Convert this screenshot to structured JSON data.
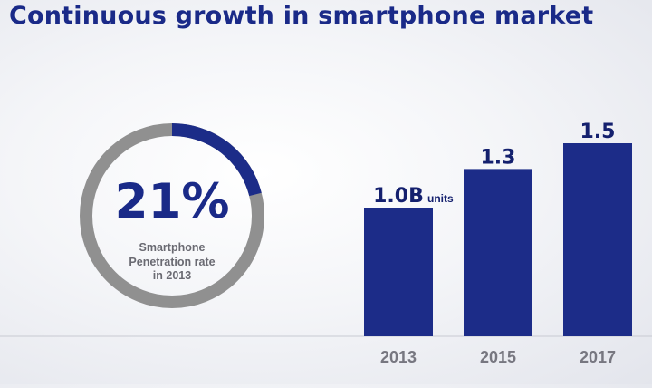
{
  "title": "Continuous growth in smartphone market",
  "penetration": {
    "value_label": "21%",
    "fraction": 0.21,
    "caption_lines": [
      "Smartphone",
      "Penetration rate",
      "in 2013"
    ]
  },
  "colors": {
    "title": "#1a2a88",
    "bar": "#1c2c88",
    "ring_fill": "#1c2c88",
    "ring_track": "#909090"
  },
  "chart_data": {
    "type": "bar",
    "categories": [
      "2013",
      "2015",
      "2017"
    ],
    "values": [
      1.0,
      1.3,
      1.5
    ],
    "data_labels": [
      "1.0B",
      "1.3",
      "1.5"
    ],
    "unit_label": "units",
    "title": "",
    "xlabel": "",
    "ylabel": "",
    "ylim": [
      0,
      1.5
    ],
    "grid": false,
    "legend": "none"
  }
}
